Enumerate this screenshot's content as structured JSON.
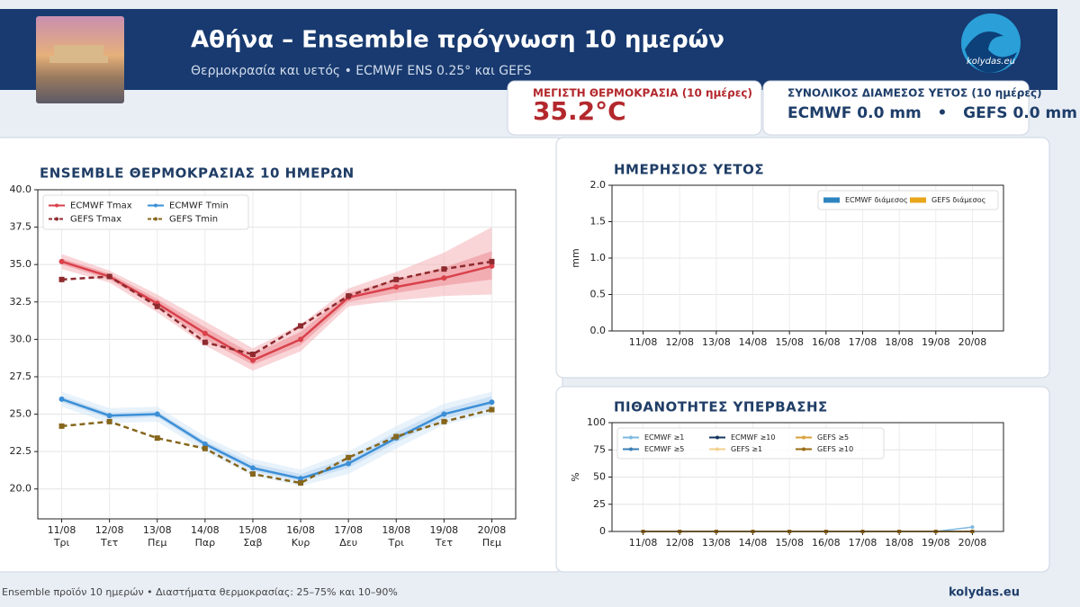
{
  "header": {
    "title": "Αθήνα – Ensemble πρόγνωση 10 ημερών",
    "subtitle": "Θερμοκρασία και υετός • ECMWF ENS 0.25° και GEFS",
    "logo_text": "kolydas.eu"
  },
  "cards": [
    {
      "label": "ΜΕΓΙΣΤΗ ΘΕΡΜΟΚΡΑΣΙΑ (10 ημέρες)",
      "value": "35.2°C"
    },
    {
      "label": "ΣΥΝΟΛΙΚΟΣ ΔΙΑΜΕΣΟΣ ΥΕΤΟΣ (10 ημέρες)",
      "value": "ECMWF 0.0 mm   •   GEFS 0.0 mm"
    }
  ],
  "chart_data": [
    {
      "type": "line",
      "title": "ENSEMBLE ΘΕΡΜΟΚΡΑΣΙΑΣ 10 ΗΜΕΡΩΝ",
      "categories": [
        "11/08",
        "12/08",
        "13/08",
        "14/08",
        "15/08",
        "16/08",
        "17/08",
        "18/08",
        "19/08",
        "20/08"
      ],
      "category_sublabels": [
        "Τρι",
        "Τετ",
        "Πεμ",
        "Παρ",
        "Σαβ",
        "Κυρ",
        "Δευ",
        "Τρι",
        "Τετ",
        "Πεμ"
      ],
      "ylim": [
        18,
        40
      ],
      "yticks": [
        {
          "value": 20,
          "label": "20.0"
        },
        22.5,
        {
          "value": 25,
          "label": "25.0"
        },
        27.5,
        {
          "value": 30,
          "label": "30.0"
        },
        32.5,
        {
          "value": 35,
          "label": "35.0"
        },
        37.5,
        {
          "value": 40,
          "label": "40.0"
        }
      ],
      "grid": true,
      "legend_loc": "upper left",
      "legend_ncol": 2,
      "bands": [
        {
          "color": "#f4b3b8",
          "lower": [
            34.7,
            33.8,
            31.8,
            29.6,
            27.9,
            29.2,
            32.2,
            32.6,
            32.9,
            33.0
          ],
          "upper": [
            35.7,
            34.6,
            33.0,
            31.2,
            29.4,
            31.0,
            33.4,
            34.5,
            35.8,
            37.5
          ]
        },
        {
          "color": "#ec8d94",
          "lower": [
            35.0,
            34.0,
            32.2,
            30.0,
            28.3,
            29.6,
            32.5,
            33.1,
            33.6,
            34.0
          ],
          "upper": [
            35.4,
            34.4,
            32.7,
            30.8,
            29.0,
            30.5,
            33.1,
            34.0,
            34.8,
            35.9
          ]
        },
        {
          "color": "#d6e7f7",
          "lower": [
            25.5,
            24.4,
            24.5,
            22.5,
            20.9,
            20.2,
            21.0,
            22.7,
            24.3,
            25.0
          ],
          "upper": [
            26.5,
            25.4,
            25.5,
            23.5,
            22.0,
            21.3,
            22.5,
            24.2,
            25.7,
            26.5
          ]
        },
        {
          "color": "#b5d3f0",
          "lower": [
            25.8,
            24.7,
            24.8,
            22.8,
            21.2,
            20.5,
            21.4,
            23.1,
            24.7,
            25.4
          ],
          "upper": [
            26.2,
            25.1,
            25.2,
            23.2,
            21.7,
            21.0,
            22.1,
            23.8,
            25.3,
            26.2
          ]
        }
      ],
      "series": [
        {
          "name": "ECMWF Tmax",
          "color": "#d9414b",
          "linestyle": "solid",
          "marker": "circle",
          "values": [
            35.2,
            34.2,
            32.4,
            30.4,
            28.6,
            30.0,
            32.8,
            33.5,
            34.1,
            34.9
          ]
        },
        {
          "name": "GEFS Tmax",
          "color": "#8e2a2e",
          "linestyle": "dashed",
          "marker": "square",
          "values": [
            34.0,
            34.2,
            32.2,
            29.8,
            29.0,
            30.9,
            32.9,
            34.0,
            34.7,
            35.2
          ]
        },
        {
          "name": "ECMWF Tmin",
          "color": "#3c8fd6",
          "linestyle": "solid",
          "marker": "circle",
          "values": [
            26.0,
            24.9,
            25.0,
            23.0,
            21.4,
            20.7,
            21.7,
            23.4,
            25.0,
            25.8
          ]
        },
        {
          "name": "GEFS Tmin",
          "color": "#86661c",
          "linestyle": "dashed",
          "marker": "square",
          "values": [
            24.2,
            24.5,
            23.4,
            22.7,
            21.0,
            20.4,
            22.1,
            23.5,
            24.5,
            25.3
          ]
        }
      ]
    },
    {
      "type": "bar",
      "title": "ΗΜΕΡΗΣΙΟΣ ΥΕΤΟΣ",
      "y_label": "mm",
      "categories": [
        "11/08",
        "12/08",
        "13/08",
        "14/08",
        "15/08",
        "16/08",
        "17/08",
        "18/08",
        "19/08",
        "20/08"
      ],
      "ylim": [
        0,
        2
      ],
      "yticks": [
        {
          "value": 0,
          "label": "0.0"
        },
        0.5,
        {
          "value": 1,
          "label": "1.0"
        },
        1.5,
        {
          "value": 2,
          "label": "2.0"
        }
      ],
      "grid": true,
      "legend_loc": "upper right",
      "legend_ncol": 2,
      "series": [
        {
          "name": "ECMWF διάμεσος",
          "color": "#2f84c0",
          "values": [
            0,
            0,
            0,
            0,
            0,
            0,
            0,
            0,
            0,
            0
          ]
        },
        {
          "name": "GEFS διάμεσος",
          "color": "#e8a61b",
          "values": [
            0,
            0,
            0,
            0,
            0,
            0,
            0,
            0,
            0,
            0
          ]
        }
      ]
    },
    {
      "type": "line",
      "title": "ΠΙΘΑΝΟΤΗΤΕΣ ΥΠΕΡΒΑΣΗΣ",
      "y_label": "%",
      "categories": [
        "11/08",
        "12/08",
        "13/08",
        "14/08",
        "15/08",
        "16/08",
        "17/08",
        "18/08",
        "19/08",
        "20/08"
      ],
      "ylim": [
        0,
        100
      ],
      "yticks": [
        0,
        25,
        50,
        75,
        100
      ],
      "grid": true,
      "legend_loc": "upper left",
      "legend_ncol": 3,
      "series": [
        {
          "name": "ECMWF ≥1",
          "color": "#7db8e0",
          "linestyle": "solid",
          "marker": "circle",
          "values": [
            0,
            0,
            0,
            0,
            0,
            0,
            0,
            0,
            0,
            4
          ]
        },
        {
          "name": "ECMWF ≥5",
          "color": "#3a7fb5",
          "linestyle": "solid",
          "marker": "circle",
          "values": [
            0,
            0,
            0,
            0,
            0,
            0,
            0,
            0,
            0,
            0
          ]
        },
        {
          "name": "ECMWF ≥10",
          "color": "#17375e",
          "linestyle": "solid",
          "marker": "circle",
          "values": [
            0,
            0,
            0,
            0,
            0,
            0,
            0,
            0,
            0,
            0
          ]
        },
        {
          "name": "GEFS ≥1",
          "color": "#f3d08c",
          "linestyle": "solid",
          "marker": "square",
          "values": [
            0,
            0,
            0,
            0,
            0,
            0,
            0,
            0,
            0,
            0
          ]
        },
        {
          "name": "GEFS ≥5",
          "color": "#d9a23a",
          "linestyle": "solid",
          "marker": "square",
          "values": [
            0,
            0,
            0,
            0,
            0,
            0,
            0,
            0,
            0,
            0
          ]
        },
        {
          "name": "GEFS ≥10",
          "color": "#9a6a14",
          "linestyle": "solid",
          "marker": "square",
          "values": [
            0,
            0,
            0,
            0,
            0,
            0,
            0,
            0,
            0,
            0
          ]
        }
      ]
    }
  ],
  "footer": {
    "note": "Ensemble προϊόν 10 ημερών • Διαστήματα θερμοκρασίας: 25–75% και 10–90%",
    "brand": "kolydas.eu"
  }
}
